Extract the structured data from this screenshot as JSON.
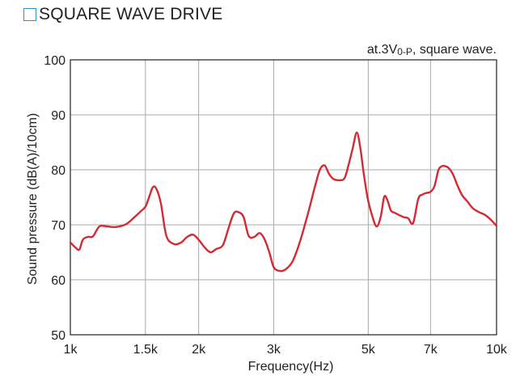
{
  "chart_data": {
    "type": "line",
    "title": "SQUARE WAVE DRIVE",
    "annotation": {
      "prefix": "at.3V",
      "subscript": "0-P",
      "suffix": ", square wave."
    },
    "xlabel": "Frequency(Hz)",
    "ylabel": "Sound pressure (dB(A)/10cm)",
    "x_scale": "log",
    "xlim": [
      1000,
      10000
    ],
    "ylim": [
      50,
      100
    ],
    "x_ticks": [
      {
        "value": 1000,
        "label": "1k"
      },
      {
        "value": 1500,
        "label": "1.5k"
      },
      {
        "value": 2000,
        "label": "2k"
      },
      {
        "value": 3000,
        "label": "3k"
      },
      {
        "value": 5000,
        "label": "5k"
      },
      {
        "value": 7000,
        "label": "7k"
      },
      {
        "value": 10000,
        "label": "10k"
      }
    ],
    "y_ticks": [
      {
        "value": 100,
        "label": "100"
      },
      {
        "value": 90,
        "label": "90"
      },
      {
        "value": 80,
        "label": "80"
      },
      {
        "value": 70,
        "label": "70"
      },
      {
        "value": 60,
        "label": "60"
      },
      {
        "value": 50,
        "label": "50"
      }
    ],
    "grid": true,
    "line_color": "#d42a33",
    "series": [
      {
        "x": [
          1000,
          1030,
          1050,
          1070,
          1100,
          1130,
          1170,
          1220,
          1280,
          1350,
          1410,
          1460,
          1500,
          1530,
          1560,
          1590,
          1630,
          1680,
          1750,
          1820,
          1880,
          1940,
          2000,
          2060,
          2130,
          2200,
          2280,
          2350,
          2420,
          2480,
          2550,
          2620,
          2700,
          2780,
          2850,
          2930,
          3000,
          3100,
          3200,
          3320,
          3450,
          3600,
          3750,
          3850,
          3950,
          4050,
          4150,
          4280,
          4400,
          4500,
          4600,
          4700,
          4790,
          4880,
          4980,
          5100,
          5230,
          5350,
          5450,
          5550,
          5650,
          5760,
          5900,
          6050,
          6200,
          6370,
          6550,
          6700,
          6850,
          7000,
          7150,
          7300,
          7420,
          7520,
          7700,
          7900,
          8100,
          8300,
          8550,
          8800,
          9100,
          9400,
          9700,
          10000
        ],
        "y": [
          66.8,
          65.8,
          65.5,
          67.3,
          67.8,
          67.9,
          69.7,
          69.7,
          69.6,
          70.1,
          71.3,
          72.4,
          73.3,
          75.0,
          76.8,
          76.6,
          74.0,
          68.0,
          66.5,
          66.8,
          67.8,
          68.2,
          67.3,
          66.0,
          65.0,
          65.6,
          66.3,
          69.4,
          72.1,
          72.3,
          71.4,
          68.0,
          67.8,
          68.5,
          67.5,
          65.0,
          62.3,
          61.6,
          61.9,
          63.3,
          66.7,
          71.7,
          77.0,
          80.0,
          80.8,
          79.2,
          78.3,
          78.1,
          78.5,
          81.0,
          84.0,
          86.8,
          84.0,
          79.3,
          75.0,
          71.8,
          69.7,
          71.5,
          75.1,
          74.4,
          72.6,
          72.2,
          71.8,
          71.4,
          71.2,
          70.3,
          74.7,
          75.5,
          75.8,
          76.0,
          77.0,
          79.9,
          80.6,
          80.7,
          80.4,
          79.2,
          77.1,
          75.4,
          74.2,
          73.0,
          72.3,
          71.8,
          70.9,
          69.8
        ]
      }
    ]
  }
}
